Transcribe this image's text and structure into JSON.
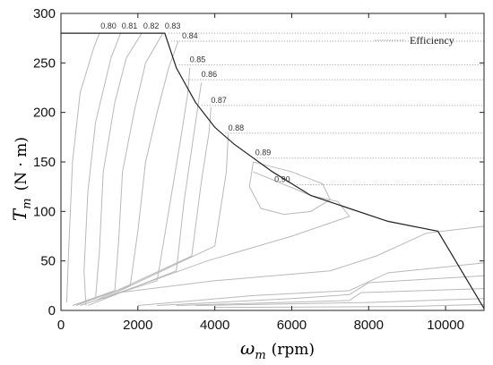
{
  "chart_data": {
    "type": "line",
    "xlabel": {
      "symbol": "ω",
      "sub": "m",
      "unit": "(rpm)"
    },
    "ylabel": {
      "symbol": "T",
      "sub": "m",
      "unit": "(N · m)"
    },
    "xlim": [
      0,
      11000
    ],
    "ylim": [
      0,
      300
    ],
    "xticks": [
      "0",
      "2000",
      "4000",
      "6000",
      "8000",
      "10000"
    ],
    "yticks": [
      "0",
      "50",
      "100",
      "150",
      "200",
      "250",
      "300"
    ],
    "legend": {
      "position": "top-right",
      "label": "Efficiency"
    },
    "grid": false,
    "max_torque_curve": {
      "x": [
        0,
        2700,
        3000,
        3500,
        4000,
        4500,
        5500,
        6500,
        8500,
        9800,
        11000
      ],
      "y": [
        280,
        280,
        245,
        210,
        185,
        168,
        140,
        116,
        90,
        80,
        2
      ]
    },
    "efficiency_labels": [
      {
        "text": "0.80",
        "x": 1030,
        "y": 282
      },
      {
        "text": "0.81",
        "x": 1580,
        "y": 282
      },
      {
        "text": "0.82",
        "x": 2140,
        "y": 282
      },
      {
        "text": "0.83",
        "x": 2700,
        "y": 282
      },
      {
        "text": "0.84",
        "x": 3150,
        "y": 272
      },
      {
        "text": "0.85",
        "x": 3350,
        "y": 248
      },
      {
        "text": "0.86",
        "x": 3650,
        "y": 233
      },
      {
        "text": "0.87",
        "x": 3900,
        "y": 207
      },
      {
        "text": "0.88",
        "x": 4350,
        "y": 179
      },
      {
        "text": "0.89",
        "x": 5050,
        "y": 154
      },
      {
        "text": "0.90",
        "x": 5550,
        "y": 127
      }
    ],
    "contours": [
      {
        "x": [
          150,
          200,
          300,
          500,
          850,
          1000
        ],
        "y": [
          8,
          60,
          150,
          220,
          265,
          280
        ]
      },
      {
        "x": [
          650,
          600,
          700,
          900,
          1300,
          1550
        ],
        "y": [
          5,
          40,
          120,
          190,
          255,
          280
        ]
      },
      {
        "x": [
          300,
          900,
          1000,
          1100,
          1400,
          1700,
          2100
        ],
        "y": [
          5,
          12,
          60,
          140,
          210,
          255,
          280
        ]
      },
      {
        "x": [
          300,
          1400,
          1500,
          1600,
          1900,
          2200,
          2650
        ],
        "y": [
          5,
          20,
          70,
          140,
          200,
          250,
          280
        ]
      },
      {
        "x": [
          400,
          1800,
          2000,
          2200,
          2500,
          2800,
          3050
        ],
        "y": [
          5,
          25,
          80,
          150,
          200,
          245,
          272
        ]
      },
      {
        "x": [
          500,
          2500,
          2800,
          3100,
          3300,
          3350
        ],
        "y": [
          5,
          30,
          100,
          170,
          220,
          245
        ]
      },
      {
        "x": [
          700,
          3000,
          3200,
          3500,
          3650
        ],
        "y": [
          5,
          40,
          110,
          190,
          230
        ]
      },
      {
        "x": [
          900,
          3400,
          3650,
          3850,
          3900
        ],
        "y": [
          10,
          55,
          130,
          180,
          205
        ]
      },
      {
        "x": [
          1100,
          4000,
          4300,
          4350
        ],
        "y": [
          12,
          65,
          140,
          178
        ]
      },
      {
        "x": [
          5000,
          4900,
          5200,
          5800,
          6500,
          7000,
          6800,
          6000,
          5300,
          5000
        ],
        "y": [
          150,
          125,
          103,
          97,
          100,
          112,
          128,
          140,
          147,
          150
        ]
      },
      {
        "x": [
          1300,
          3800,
          6000,
          7500,
          7200,
          6500,
          5000
        ],
        "y": [
          15,
          50,
          75,
          95,
          110,
          116,
          140
        ]
      },
      {
        "x": [
          1500,
          4000,
          7000,
          8200,
          9500,
          11000
        ],
        "y": [
          18,
          30,
          40,
          55,
          78,
          85
        ]
      },
      {
        "x": [
          2000,
          5000,
          7500,
          8500,
          11000
        ],
        "y": [
          5,
          15,
          20,
          38,
          48
        ]
      },
      {
        "x": [
          2500,
          6000,
          7500,
          8000,
          11000
        ],
        "y": [
          5,
          12,
          16,
          28,
          35
        ]
      },
      {
        "x": [
          3000,
          7500,
          7800,
          11000
        ],
        "y": [
          5,
          10,
          18,
          22
        ]
      },
      {
        "x": [
          3500,
          8000,
          11000
        ],
        "y": [
          5,
          8,
          12
        ]
      },
      {
        "x": [
          4000,
          9000,
          11000
        ],
        "y": [
          3,
          4,
          6
        ]
      }
    ],
    "efficiency_levels_y": [
      280,
      272,
      248,
      233,
      207,
      179,
      154,
      127
    ]
  }
}
